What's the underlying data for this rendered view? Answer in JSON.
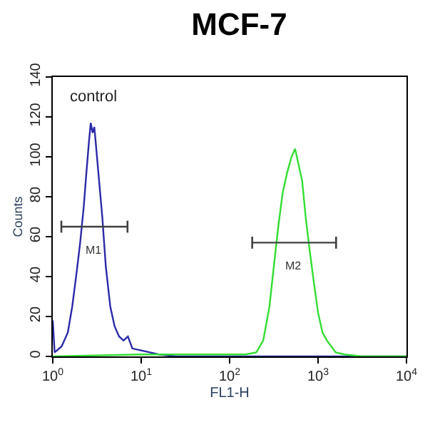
{
  "chart_data": {
    "type": "line",
    "title": "MCF-7",
    "xlabel": "FL1-H",
    "ylabel": "Counts",
    "log": "x",
    "xlim": [
      1,
      10000
    ],
    "xticks": [
      {
        "value": 1,
        "label": "10$^{0}$"
      },
      {
        "value": 10,
        "label": "10$^{1}$"
      },
      {
        "value": 100,
        "label": "10$^{2}$"
      },
      {
        "value": 1000,
        "label": "10$^{3}$"
      },
      {
        "value": 10000,
        "label": "10$^{4}$"
      }
    ],
    "ylim": [
      0,
      140
    ],
    "yticks": [
      0,
      20,
      40,
      60,
      80,
      100,
      120,
      140
    ],
    "series": [
      {
        "color": "#2a2aa8",
        "x": [
          1,
          1.05,
          1.26,
          1.48,
          1.66,
          1.86,
          2.04,
          2.24,
          2.4,
          2.57,
          2.69,
          2.82,
          2.95,
          3.09,
          3.31,
          3.63,
          3.98,
          4.47,
          5.01,
          5.62,
          6.31,
          7.08,
          7.94,
          10,
          12.6,
          15.8,
          25,
          200,
          1000,
          10000
        ],
        "values": [
          18,
          2,
          5,
          12,
          25,
          42,
          57,
          75,
          92,
          108,
          117,
          112,
          115,
          105,
          90,
          70,
          45,
          25,
          15,
          10,
          8,
          10,
          4,
          3,
          2,
          1,
          0,
          0,
          0,
          0
        ]
      },
      {
        "color": "#33dd33",
        "x": [
          1,
          10,
          50,
          150,
          200,
          240,
          282,
          316,
          355,
          398,
          447,
          501,
          550,
          603,
          661,
          724,
          794,
          891,
          1000,
          1122,
          1259,
          1413,
          1585,
          2000,
          3162,
          10000
        ],
        "values": [
          0,
          1,
          1,
          1,
          2,
          8,
          25,
          45,
          65,
          82,
          92,
          100,
          104,
          96,
          88,
          70,
          55,
          38,
          22,
          12,
          8,
          5,
          2,
          1,
          0,
          0
        ]
      },
      {
        "color": "#404040",
        "x": [
          1.25,
          7
        ],
        "values": [
          65,
          65
        ],
        "errors": [
          3,
          3
        ]
      },
      {
        "color": "#404040",
        "x": [
          180,
          1600
        ],
        "values": [
          57,
          57
        ],
        "errors": [
          3,
          3
        ]
      }
    ],
    "annotations": [
      "control",
      "M1",
      "M2"
    ]
  }
}
